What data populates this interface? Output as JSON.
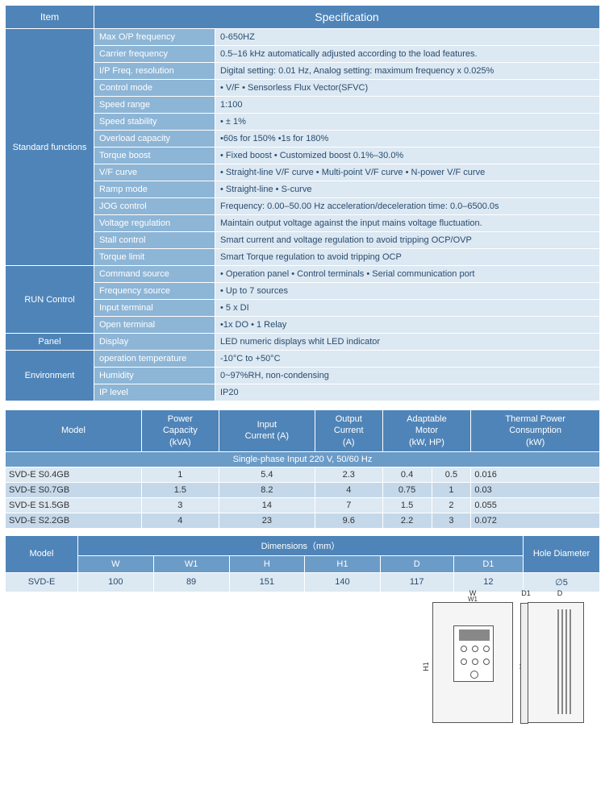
{
  "spec_table": {
    "item_header": "Item",
    "spec_header": "Specification",
    "groups": [
      {
        "name": "Standard functions",
        "rows": [
          {
            "label": "Max O/P frequency",
            "value": "0-650HZ"
          },
          {
            "label": "Carrier frequency",
            "value": "0.5–16 kHz  automatically adjusted according to the load features."
          },
          {
            "label": "I/P Freq. resolution",
            "value": "Digital setting: 0.01 Hz, Analog setting: maximum frequency x 0.025%"
          },
          {
            "label": "Control mode",
            "value": "• V/F • Sensorless Flux Vector(SFVC)"
          },
          {
            "label": "Speed range",
            "value": "1:100"
          },
          {
            "label": "Speed stability",
            "value": "• ± 1%"
          },
          {
            "label": "Overload capacity",
            "value": "•60s for 150%  •1s for 180%"
          },
          {
            "label": "Torque boost",
            "value": "• Fixed boost   • Customized boost 0.1%–30.0%"
          },
          {
            "label": "V/F curve",
            "value": "• Straight-line V/F curve  • Multi-point V/F curve • N-power V/F curve"
          },
          {
            "label": "Ramp mode",
            "value": "• Straight-line  • S-curve"
          },
          {
            "label": "JOG control",
            "value": "Frequency: 0.00–50.00 Hz acceleration/deceleration time: 0.0–6500.0s"
          },
          {
            "label": "Voltage regulation",
            "value": "Maintain output voltage against the input mains voltage fluctuation."
          },
          {
            "label": "Stall control",
            "value": "Smart current and voltage regulation to avoid tripping OCP/OVP"
          },
          {
            "label": "Torque limit",
            "value": "Smart Torque regulation to avoid tripping OCP"
          }
        ]
      },
      {
        "name": "RUN Control",
        "rows": [
          {
            "label": "Command source",
            "value": "• Operation panel • Control terminals • Serial communication port"
          },
          {
            "label": "Frequency source",
            "value": "• Up to 7 sources"
          },
          {
            "label": "Input terminal",
            "value": "• 5 x DI"
          },
          {
            "label": "Open terminal",
            "value": "•1x DO • 1 Relay"
          }
        ]
      },
      {
        "name": "Panel",
        "rows": [
          {
            "label": "Display",
            "value": "LED numeric displays whit LED indicator"
          }
        ]
      },
      {
        "name": "Environment",
        "rows": [
          {
            "label": "operation temperature",
            "value": "-10°C to +50°C"
          },
          {
            "label": "Humidity",
            "value": "0~97%RH, non-condensing"
          },
          {
            "label": "IP level",
            "value": "IP20"
          }
        ]
      }
    ]
  },
  "model_table": {
    "headers": [
      "Model",
      "Power Capacity (kVA)",
      "Input Current (A)",
      "Output Current (A)",
      "Adaptable Motor (kW,  HP)",
      "",
      "Thermal Power Consumption (kW)"
    ],
    "section": "Single-phase Input 220 V, 50/60 Hz",
    "rows": [
      [
        "SVD-E S0.4GB",
        "1",
        "5.4",
        "2.3",
        "0.4",
        "0.5",
        "0.016"
      ],
      [
        "SVD-E S0.7GB",
        "1.5",
        "8.2",
        "4",
        "0.75",
        "1",
        "0.03"
      ],
      [
        "SVD-E S1.5GB",
        "3",
        "14",
        "7",
        "1.5",
        "2",
        "0.055"
      ],
      [
        "SVD-E S2.2GB",
        "4",
        "23",
        "9.6",
        "2.2",
        "3",
        "0.072"
      ]
    ]
  },
  "dim_table": {
    "model_hdr": "Model",
    "dim_hdr": "Dimensions（mm）",
    "hole_hdr": "Hole Diameter",
    "sub": [
      "W",
      "W1",
      "H",
      "H1",
      "D",
      "D1"
    ],
    "row": [
      "SVD-E",
      "100",
      "89",
      "151",
      "140",
      "117",
      "12",
      "∅5"
    ]
  },
  "diagram": {
    "W": "W",
    "W1": "W1",
    "H": "H",
    "H1": "H1",
    "D": "D",
    "D1": "D1"
  },
  "colors": {
    "hdr": "#4f84b8",
    "sub": "#6b9bc7",
    "lbl": "#8db5d6",
    "val": "#dce8f2",
    "odd": "#c4d8ea"
  }
}
